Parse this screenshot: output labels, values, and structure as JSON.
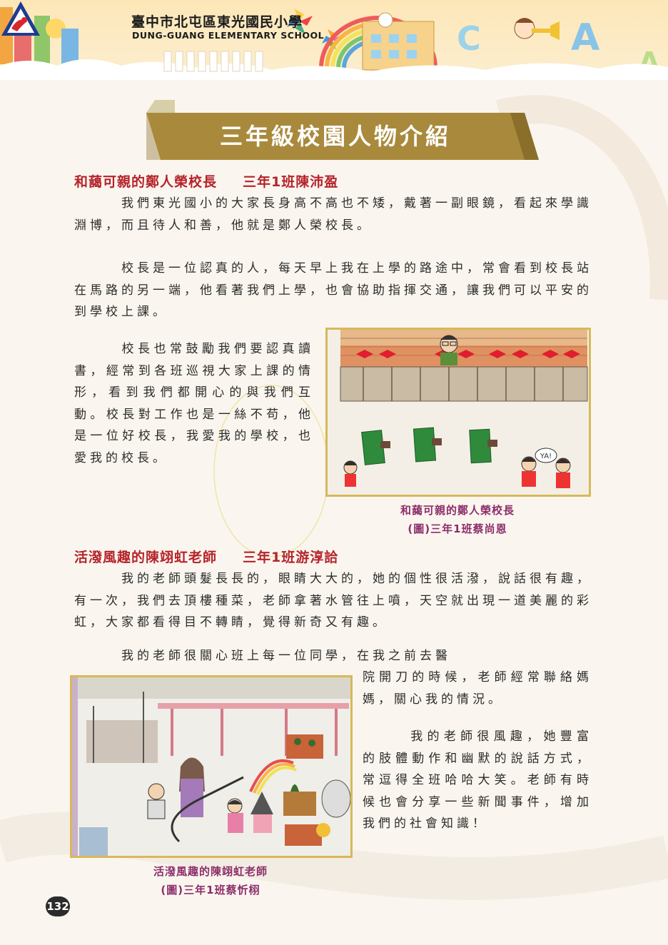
{
  "header": {
    "school_name_zh": "臺中市北屯區東光國民小學",
    "school_name_en": "DUNG-GUANG ELEMENTARY SCHOOL"
  },
  "title": "三年級校園人物介紹",
  "section1": {
    "heading": "和藹可親的鄭人榮校長",
    "author": "三年1班陳沛盈",
    "p1": "我們東光國小的大家長身高不高也不矮，戴著一副眼鏡，看起來學識淵博，而且待人和善，他就是鄭人榮校長。",
    "p2": "校長是一位認真的人，每天早上我在上學的路途中，常會看到校長站在馬路的另一端，他看著我們上學，也會協助指揮交通，讓我們可以平安的到學校上課。",
    "p3": "校長也常鼓勵我們要認真讀書，經常到各班巡視大家上課的情形，看到我們都開心的與我們互動。校長對工作也是一絲不苟，他是一位好校長，我愛我的學校，也愛我的校長。",
    "caption_line1": "和藹可親的鄭人榮校長",
    "caption_line2": "(圖)三年1班蔡尚恩",
    "drawing_speech": "YA!"
  },
  "section2": {
    "heading": "活潑風趣的陳翊虹老師",
    "author": "三年1班游淳詥",
    "p1": "我的老師頭髮長長的，眼睛大大的，她的個性很活潑，說話很有趣，有一次，我們去頂樓種菜，老師拿著水管往上噴，天空就出現一道美麗的彩虹，大家都看得目不轉睛，覺得新奇又有趣。",
    "p2a": "我的老師很關心班上每一位同學，在我之前去醫",
    "p2b": "院開刀的時候，老師經常聯絡媽媽，關心我的情況。",
    "p3": "我的老師很風趣，她豐富的肢體動作和幽默的說話方式，常逗得全班哈哈大笑。老師有時候也會分享一些新聞事件，增加我們的社會知識！",
    "caption_line1": "活潑風趣的陳翊虹老師",
    "caption_line2": "(圖)三年1班蔡忻栩"
  },
  "page_number": "132",
  "colors": {
    "heading": "#b5232a",
    "caption": "#8d2e6b",
    "ribbon": "#a98a3c",
    "frame": "#d8b85a"
  }
}
